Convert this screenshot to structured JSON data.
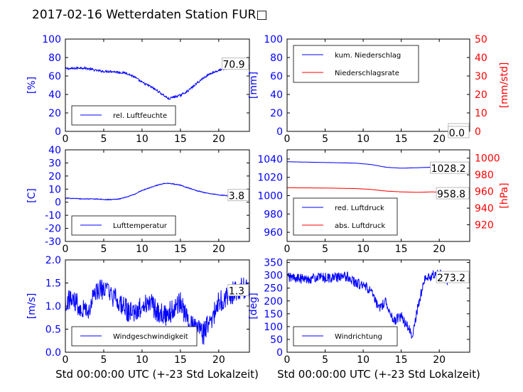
{
  "title": "2017-02-16 Wetterdaten Station FUR□",
  "colors": {
    "primary": "#0000ff",
    "secondary": "#ff0000",
    "axis": "#000000",
    "legendBorder": "#000000"
  },
  "chart_data": [
    {
      "id": "humidity",
      "type": "line",
      "ylabel": "[%]",
      "xlim": [
        0,
        24
      ],
      "ylim": [
        0,
        100
      ],
      "xticks": [
        0,
        5,
        10,
        15,
        20
      ],
      "yticks": [
        0,
        20,
        40,
        60,
        80,
        100
      ],
      "last_value": "70.9",
      "legend_pos": "lower-left",
      "series": [
        {
          "name": "rel. Luftfeuchte",
          "color": "#0000ff",
          "noise": 1.2,
          "x": [
            0,
            1,
            2,
            3,
            4,
            5,
            6,
            7,
            8,
            9,
            10,
            11,
            12,
            13,
            13.5,
            14,
            15,
            16,
            17,
            18,
            19,
            20,
            21,
            22,
            23,
            24
          ],
          "y": [
            68,
            68,
            69,
            68,
            66,
            65,
            65,
            64,
            63,
            59,
            53,
            49,
            44,
            38,
            35,
            37,
            39,
            44,
            51,
            58,
            63,
            66,
            68,
            70,
            71,
            71
          ]
        }
      ]
    },
    {
      "id": "precip",
      "type": "line",
      "ylabel": "[mm]",
      "ylabel2": "[mm/std]",
      "xlim": [
        0,
        24
      ],
      "ylim": [
        0,
        100
      ],
      "ylim2": [
        0,
        50
      ],
      "xticks": [
        0,
        5,
        10,
        15,
        20
      ],
      "yticks": [
        0,
        20,
        40,
        60,
        80,
        100
      ],
      "yticks2": [
        0,
        10,
        20,
        30,
        40,
        50
      ],
      "last_value": "0.0",
      "last_value2": "0.0",
      "legend_pos": "upper-left",
      "series": [
        {
          "name": "kum. Niederschlag",
          "color": "#0000ff",
          "noise": 0,
          "x": [
            0,
            24
          ],
          "y": [
            0,
            0
          ]
        },
        {
          "name": "Niederschlagsrate",
          "color": "#ff0000",
          "noise": 0,
          "axis": 2,
          "x": [
            0,
            24
          ],
          "y": [
            0,
            0
          ]
        }
      ]
    },
    {
      "id": "temperature",
      "type": "line",
      "ylabel": "[C]",
      "xlim": [
        0,
        24
      ],
      "ylim": [
        -30,
        40
      ],
      "xticks": [
        0,
        5,
        10,
        15,
        20
      ],
      "yticks": [
        -30,
        -20,
        -10,
        0,
        10,
        20,
        30,
        40
      ],
      "last_value": "3.8",
      "legend_pos": "lower-left",
      "series": [
        {
          "name": "Lufttemperatur",
          "color": "#0000ff",
          "noise": 0.3,
          "x": [
            0,
            1,
            2,
            3,
            4,
            5,
            6,
            7,
            8,
            9,
            10,
            11,
            12,
            13,
            14,
            15,
            16,
            17,
            18,
            19,
            20,
            21,
            22,
            23,
            24
          ],
          "y": [
            3,
            3,
            2.5,
            2.5,
            2.5,
            2,
            2,
            2.5,
            4,
            6,
            9,
            11,
            13,
            14.5,
            14,
            13,
            11,
            9,
            7.5,
            6.5,
            5.5,
            5,
            4.5,
            4,
            3.8
          ]
        }
      ]
    },
    {
      "id": "pressure",
      "type": "line",
      "ylabel": "",
      "ylabel2": "[hPa]",
      "xlim": [
        0,
        24
      ],
      "ylim": [
        950,
        1050
      ],
      "ylim2": [
        900,
        1010
      ],
      "xticks": [
        0,
        5,
        10,
        15,
        20
      ],
      "yticks": [
        960,
        980,
        1000,
        1020,
        1040
      ],
      "yticks2": [
        920,
        940,
        960,
        980,
        1000
      ],
      "last_value": "1028.2",
      "last_value2": "958.8",
      "legend_pos": "lower-left",
      "series": [
        {
          "name": "red. Luftdruck",
          "color": "#0000ff",
          "noise": 0.1,
          "x": [
            0,
            3,
            6,
            9,
            11,
            13,
            15,
            17,
            19,
            21,
            24
          ],
          "y": [
            1037,
            1036.5,
            1036,
            1035.5,
            1034,
            1031,
            1030,
            1030.5,
            1031,
            1030,
            1028.2
          ]
        },
        {
          "name": "abs. Luftdruck",
          "color": "#ff0000",
          "noise": 0.1,
          "axis": 2,
          "x": [
            0,
            3,
            6,
            9,
            11,
            13,
            15,
            17,
            19,
            21,
            24
          ],
          "y": [
            964.5,
            964.3,
            964,
            963.5,
            962.5,
            960.5,
            959.5,
            959,
            959.5,
            959,
            958.8
          ]
        }
      ]
    },
    {
      "id": "windspeed",
      "type": "line",
      "ylabel": "[m/s]",
      "xlim": [
        0,
        24
      ],
      "ylim": [
        0,
        2
      ],
      "xticks": [
        0,
        5,
        10,
        15,
        20
      ],
      "yticks": [
        0.0,
        0.5,
        1.0,
        1.5,
        2.0
      ],
      "ytick_decimals": 1,
      "last_value": "1.3",
      "legend_pos": "lower-left",
      "series": [
        {
          "name": "Windgeschwindigkeit",
          "color": "#0000ff",
          "noise": 0.25,
          "clip": [
            0.1,
            1.95
          ],
          "x": [
            0,
            1,
            2,
            3,
            4,
            5,
            6,
            7,
            8,
            9,
            10,
            11,
            12,
            13,
            14,
            15,
            16,
            17,
            18,
            19,
            20,
            21,
            22,
            23,
            24
          ],
          "y": [
            1.1,
            1.15,
            1.0,
            0.9,
            1.3,
            1.4,
            1.2,
            1.1,
            0.9,
            0.8,
            1.0,
            1.1,
            0.9,
            0.8,
            0.9,
            1.1,
            0.6,
            0.5,
            0.4,
            0.7,
            1.1,
            1.2,
            1.3,
            1.4,
            1.3
          ]
        }
      ]
    },
    {
      "id": "winddir",
      "type": "line",
      "ylabel": "[deg]",
      "xlim": [
        0,
        24
      ],
      "ylim": [
        0,
        360
      ],
      "xticks": [
        0,
        5,
        10,
        15,
        20
      ],
      "yticks": [
        0,
        50,
        100,
        150,
        200,
        250,
        300,
        350
      ],
      "last_value": "273.2",
      "legend_pos": "lower-left",
      "series": [
        {
          "name": "Windrichtung",
          "color": "#0000ff",
          "noise": 20,
          "clip": [
            20,
            330
          ],
          "x": [
            0,
            2,
            4,
            6,
            8,
            9,
            10,
            11,
            12,
            13,
            14,
            15,
            16,
            16.5,
            17,
            18,
            19,
            20,
            21,
            22,
            23,
            24
          ],
          "y": [
            295,
            285,
            290,
            290,
            295,
            270,
            260,
            240,
            170,
            200,
            120,
            140,
            90,
            60,
            150,
            280,
            300,
            305,
            280,
            290,
            295,
            285
          ]
        }
      ]
    }
  ],
  "xlabel_bottom": "Std 00:00:00 UTC (+-23 Std Lokalzeit)"
}
